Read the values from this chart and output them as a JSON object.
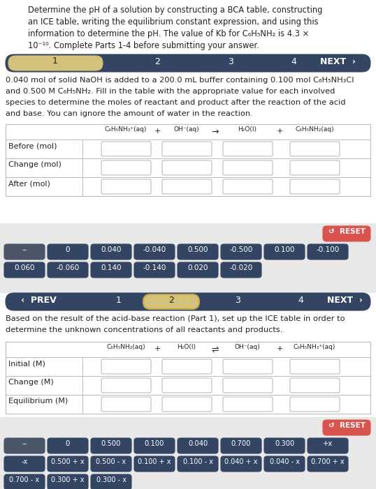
{
  "white": "#ffffff",
  "dark_navy": "#344563",
  "gray_btn": "#4a5568",
  "medium_gray": "#bbbbbb",
  "light_gray": "#e8e8e8",
  "tan": "#d4c27a",
  "tan_border": "#c9a84c",
  "red_btn": "#d9534f",
  "text_dark": "#222222",
  "text_white": "#ffffff",
  "text_gray": "#555555",
  "header_lines": [
    "Determine the pH of a solution by constructing a BCA table, constructing",
    "an ICE table, writing the equilibrium constant expression, and using this",
    "information to determine the pH. The value of Kb for C₆H₅NH₂ is 4.3 ×",
    "10⁻¹⁰. Complete Parts 1-4 before submitting your answer."
  ],
  "part1_lines": [
    "0.040 mol of solid NaOH is added to a 200.0 mL buffer containing 0.100 mol C₆H₅NH₃Cl",
    "and 0.500 M C₆H₅NH₂. Fill in the table with the appropriate value for each involved",
    "species to determine the moles of reactant and product after the reaction of the acid",
    "and base. You can ignore the amount of water in the reaction."
  ],
  "part2_lines": [
    "Based on the result of the acid-base reaction (Part 1), set up the ICE table in order to",
    "determine the unknown concentrations of all reactants and products."
  ],
  "bca_headers": [
    "C₆H₅NH₃⁺(aq)",
    "+",
    "OH⁻(aq)",
    "→",
    "H₂O(l)",
    "+",
    "C₆H₅NH₂(aq)"
  ],
  "bca_rows": [
    "Before (mol)",
    "Change (mol)",
    "After (mol)"
  ],
  "ice_headers": [
    "C₆H₅NH₂(aq)",
    "+",
    "H₂O(l)",
    "⇌",
    "OH⁻(aq)",
    "+",
    "C₆H₅NH₃⁺(aq)"
  ],
  "ice_rows": [
    "Initial (M)",
    "Change (M)",
    "Equilibrium (M)"
  ],
  "btns_top_r1": [
    "--",
    "0",
    "0.040",
    "-0.040",
    "0.500",
    "-0.500",
    "0.100",
    "-0.100"
  ],
  "btns_top_r2": [
    "0.060",
    "-0.060",
    "0.140",
    "-0.140",
    "0.020",
    "-0.020"
  ],
  "btns_bot_r1": [
    "--",
    "0",
    "0.500",
    "0.100",
    "0.040",
    "0.700",
    "0.300",
    "+x"
  ],
  "btns_bot_r2": [
    "-x",
    "0.500 + x",
    "0.500 - x",
    "0.100 + x",
    "0.100 - x",
    "0.040 + x",
    "0.040 - x",
    "0.700 + x"
  ],
  "btns_bot_r3": [
    "0.700 - x",
    "0.300 + x",
    "0.300 - x"
  ]
}
